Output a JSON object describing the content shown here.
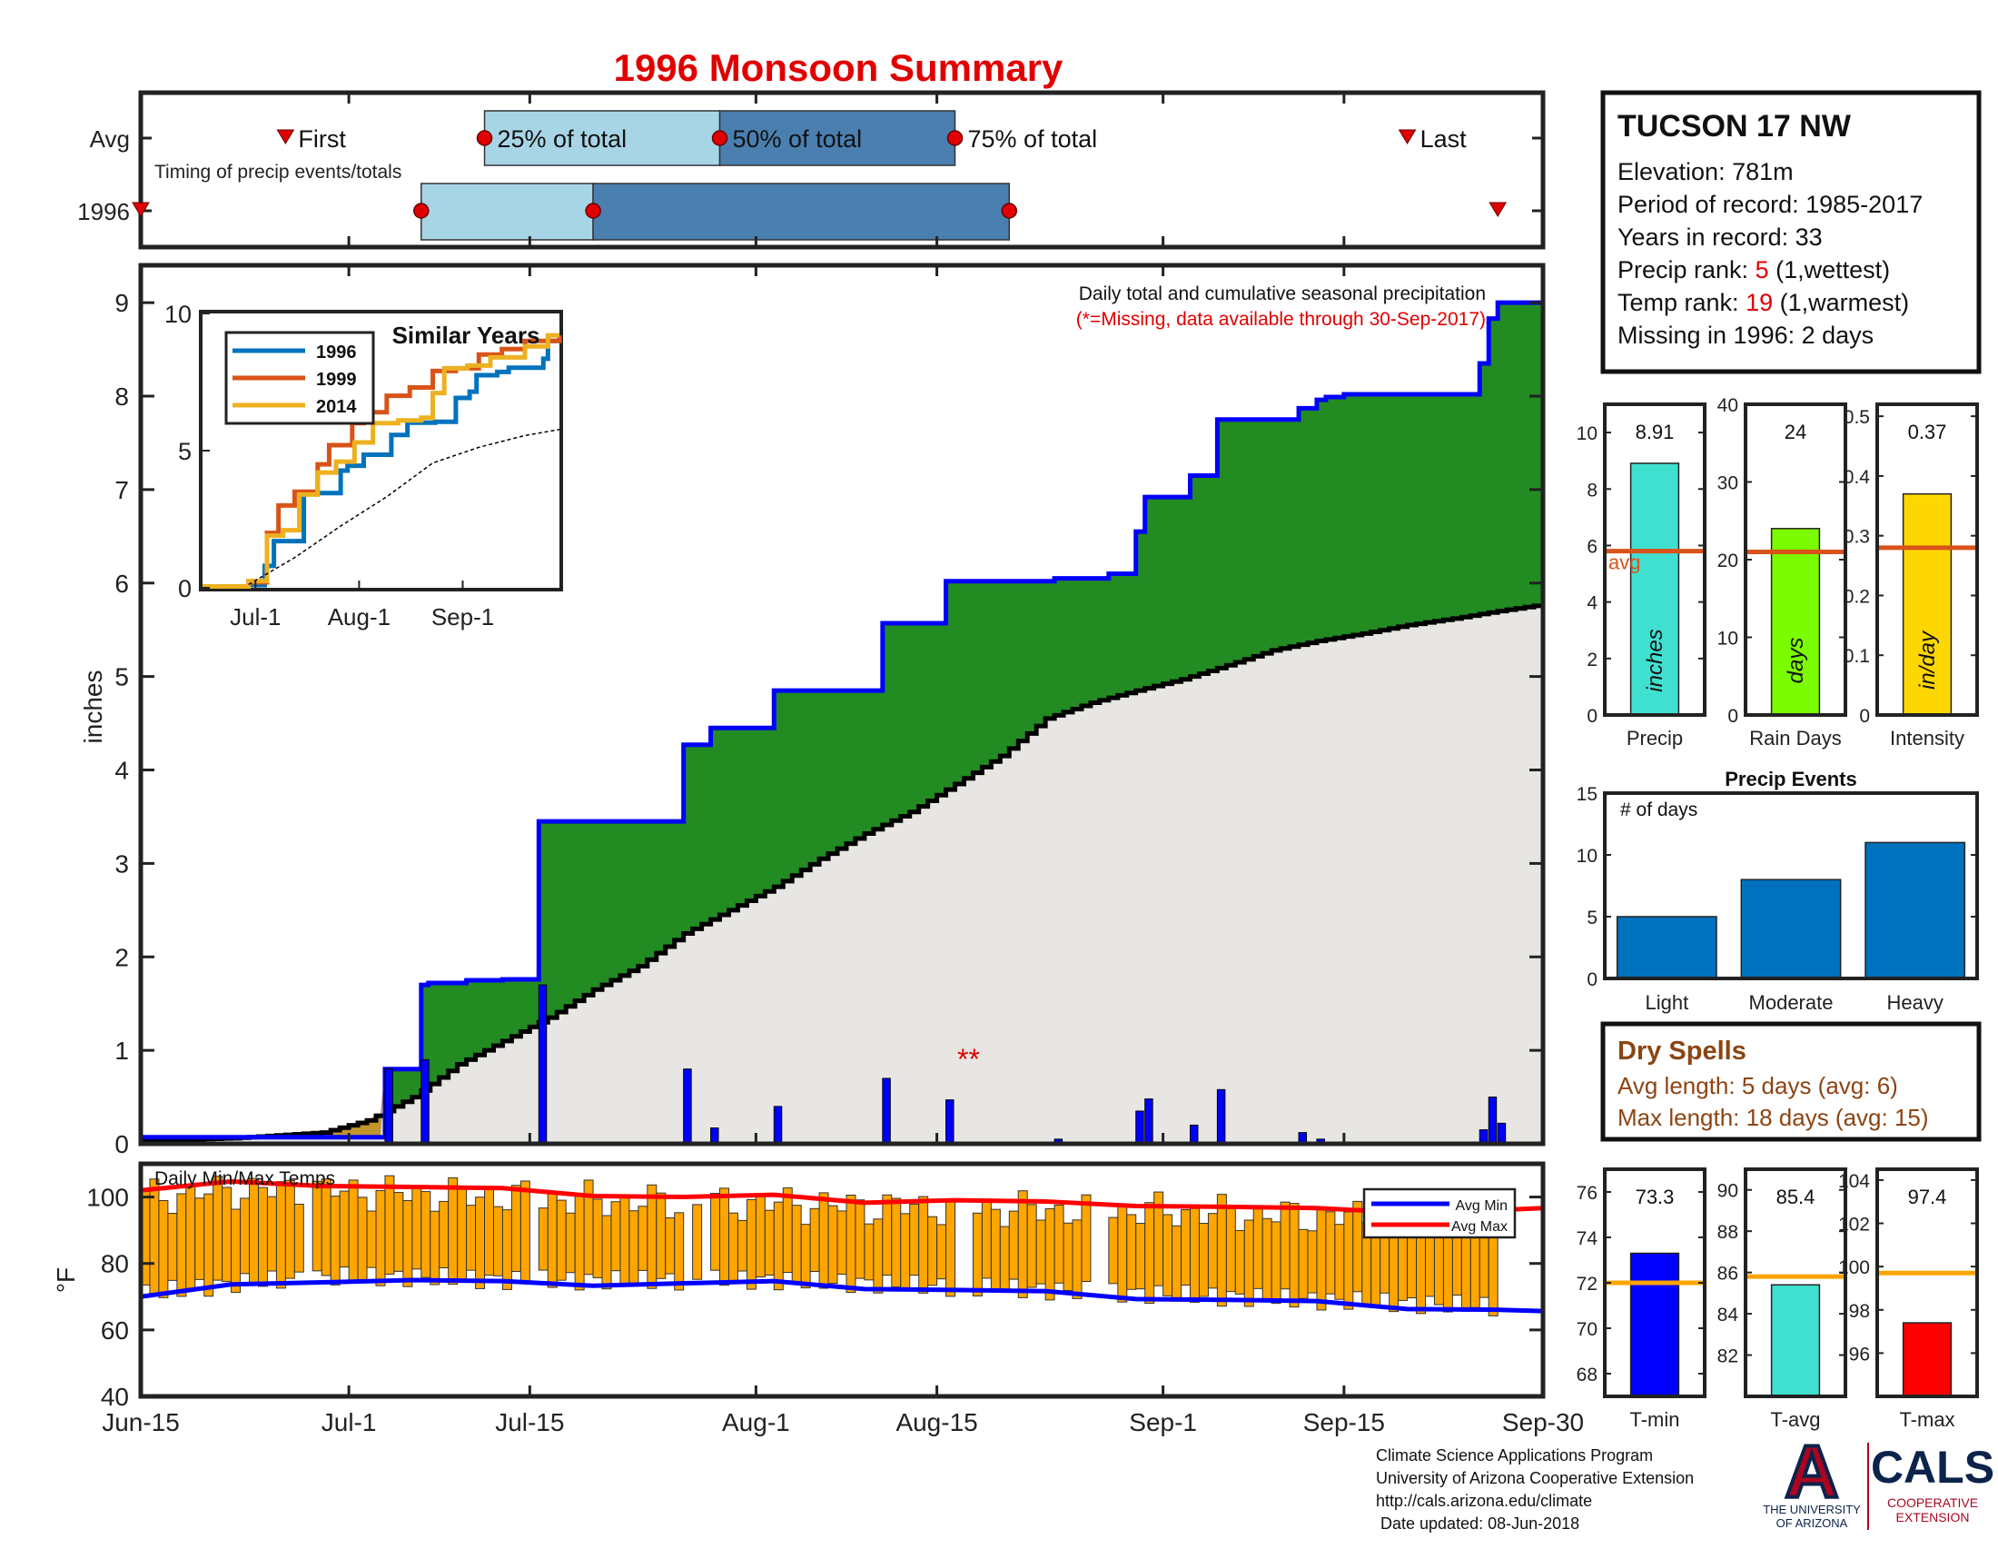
{
  "header": {
    "title": "1996 Monsoon Summary"
  },
  "station": {
    "name": "TUCSON 17 NW",
    "elevation": "Elevation: 781m",
    "period": "Period of record: 1985-2017",
    "years": "Years in record: 33",
    "precip_rank_label": "Precip rank: ",
    "precip_rank_value": "5",
    "precip_rank_suffix": " (1,wettest)",
    "temp_rank_label": "Temp rank: ",
    "temp_rank_value": "19",
    "temp_rank_suffix": " (1,warmest)",
    "missing": "Missing in 1996: 2 days"
  },
  "timing": {
    "row_labels": [
      "Avg",
      "1996"
    ],
    "caption": "Timing of precip events/totals",
    "first_label": "First",
    "last_label": "Last",
    "q25_label": "25% of total",
    "q50_label": "50% of total",
    "q75_label": "75% of total",
    "avg_day": {
      "first": 16,
      "q25": 38,
      "q50": 64,
      "q75": 90,
      "last": 140
    },
    "y1996_day": {
      "first": 0,
      "q25": 31,
      "q50": 50,
      "q75": 96,
      "last": 150
    }
  },
  "main_chart": {
    "ylabel": "inches",
    "note": "Daily total and cumulative seasonal precipitation",
    "missing_note": "(*=Missing, data available through 30-Sep-2017)",
    "missing_marker": "**",
    "missing_day": 91.5,
    "ylim": [
      0,
      9.4
    ],
    "yticks": [
      0,
      1,
      2,
      3,
      4,
      5,
      6,
      7,
      8,
      9
    ],
    "x_ticks": [
      {
        "label": "Jun-15",
        "day": 0
      },
      {
        "label": "Jul-1",
        "day": 23
      },
      {
        "label": "Jul-15",
        "day": 43
      },
      {
        "label": "Aug-1",
        "day": 68
      },
      {
        "label": "Aug-15",
        "day": 88
      },
      {
        "label": "Sep-1",
        "day": 113
      },
      {
        "label": "Sep-15",
        "day": 133
      },
      {
        "label": "Sep-30",
        "day": 155
      }
    ],
    "colors": {
      "cumulative_1996": "#0000ff",
      "green_fill": "#228b22",
      "avg_fill": "#e8e6e3",
      "daily_bars": "#0000ff",
      "avg_line": "#000000"
    }
  },
  "chart_data": [
    {
      "type": "area",
      "title": "Daily total and cumulative seasonal precipitation",
      "ylabel": "inches",
      "x_unit": "days since Jun-15",
      "series": [
        {
          "name": "1996 cumulative",
          "steps": [
            [
              0,
              0.07
            ],
            [
              27,
              0.8
            ],
            [
              31,
              1.7
            ],
            [
              31.8,
              1.72
            ],
            [
              36,
              1.75
            ],
            [
              40,
              1.76
            ],
            [
              44,
              3.45
            ],
            [
              60,
              4.27
            ],
            [
              63,
              4.45
            ],
            [
              70,
              4.85
            ],
            [
              82,
              5.57
            ],
            [
              89,
              6.02
            ],
            [
              101,
              6.05
            ],
            [
              107,
              6.1
            ],
            [
              110,
              6.55
            ],
            [
              111,
              6.92
            ],
            [
              116,
              7.15
            ],
            [
              119,
              7.75
            ],
            [
              128,
              7.87
            ],
            [
              130,
              7.96
            ],
            [
              131,
              7.99
            ],
            [
              133,
              8.02
            ],
            [
              148,
              8.35
            ],
            [
              149,
              8.83
            ],
            [
              150,
              9.0
            ]
          ]
        },
        {
          "name": "Average cumulative",
          "x": [
            0,
            10,
            20,
            25,
            30,
            35,
            40,
            45,
            50,
            55,
            60,
            65,
            70,
            75,
            80,
            85,
            90,
            95,
            100,
            105,
            110,
            115,
            120,
            125,
            130,
            135,
            140,
            145,
            150,
            155
          ],
          "y": [
            0.03,
            0.06,
            0.12,
            0.25,
            0.5,
            0.85,
            1.1,
            1.35,
            1.65,
            1.9,
            2.25,
            2.5,
            2.75,
            3.05,
            3.32,
            3.55,
            3.85,
            4.15,
            4.55,
            4.72,
            4.85,
            4.97,
            5.12,
            5.28,
            5.38,
            5.46,
            5.55,
            5.62,
            5.7,
            5.77
          ]
        },
        {
          "name": "Daily total",
          "x": [
            27,
            31,
            44,
            60,
            63,
            70,
            82,
            89,
            101,
            110,
            111,
            116,
            119,
            128,
            130,
            148,
            149,
            150
          ],
          "y": [
            0.8,
            0.9,
            1.7,
            0.8,
            0.17,
            0.4,
            0.7,
            0.47,
            0.05,
            0.35,
            0.48,
            0.2,
            0.58,
            0.12,
            0.05,
            0.15,
            0.5,
            0.22
          ]
        }
      ]
    },
    {
      "type": "line",
      "title": "Similar Years",
      "x_unit": "days since Jun-15",
      "xticks": [
        {
          "label": "Jul-1",
          "day": 23
        },
        {
          "label": "Aug-1",
          "day": 68
        },
        {
          "label": "Sep-1",
          "day": 113
        }
      ],
      "ylim": [
        0,
        10
      ],
      "yticks": [
        0,
        5,
        10
      ],
      "series": [
        {
          "name": "1996",
          "color": "#0072bd",
          "x": [
            0,
            20,
            27,
            31,
            44,
            60,
            63,
            70,
            82,
            89,
            101,
            110,
            116,
            119,
            128,
            133,
            148,
            150,
            155
          ],
          "y": [
            0.05,
            0.1,
            0.8,
            1.7,
            3.45,
            4.27,
            4.45,
            4.85,
            5.57,
            6.02,
            6.05,
            6.92,
            7.15,
            7.75,
            7.87,
            8.02,
            8.35,
            9.0,
            9.0
          ]
        },
        {
          "name": "1999",
          "color": "#d95319",
          "x": [
            0,
            20,
            28,
            33,
            40,
            50,
            55,
            65,
            70,
            80,
            90,
            100,
            110,
            120,
            130,
            140,
            150,
            155
          ],
          "y": [
            0.05,
            0.2,
            2.0,
            3.0,
            3.5,
            4.5,
            5.2,
            6.0,
            6.4,
            7.0,
            7.3,
            7.9,
            8.0,
            8.5,
            8.7,
            9.0,
            9.0,
            9.2
          ]
        },
        {
          "name": "2014",
          "color": "#edb120",
          "x": [
            0,
            20,
            28,
            35,
            42,
            50,
            58,
            66,
            74,
            85,
            95,
            100,
            105,
            115,
            125,
            140,
            150,
            155
          ],
          "y": [
            0.05,
            0.25,
            1.9,
            2.1,
            3.4,
            4.2,
            4.6,
            5.3,
            6.0,
            6.1,
            6.2,
            7.1,
            8.0,
            8.1,
            8.4,
            8.8,
            9.2,
            9.2
          ]
        },
        {
          "name": "Average",
          "color": "#000000",
          "x": [
            20,
            40,
            60,
            80,
            100,
            120,
            140,
            155
          ],
          "y": [
            0.12,
            1.1,
            2.25,
            3.32,
            4.55,
            5.12,
            5.55,
            5.77
          ]
        }
      ]
    },
    {
      "type": "bar",
      "title": "Daily Min/Max Temps",
      "ylabel": "°F",
      "ylim": [
        40,
        110
      ],
      "yticks": [
        40,
        60,
        80,
        100
      ],
      "legend": [
        "Avg Min",
        "Avg Max"
      ],
      "legend_position": "top-right",
      "x_unit": "days since Jun-15",
      "series": [
        {
          "name": "Avg Max",
          "x": [
            0,
            10,
            20,
            30,
            40,
            50,
            60,
            70,
            80,
            90,
            100,
            110,
            120,
            130,
            140,
            150,
            155
          ],
          "y": [
            102,
            104,
            104,
            103,
            102,
            101,
            100,
            100,
            99,
            99,
            98,
            98,
            97,
            96,
            96,
            96,
            96
          ]
        },
        {
          "name": "Avg Min",
          "x": [
            0,
            10,
            20,
            30,
            40,
            50,
            60,
            70,
            80,
            90,
            100,
            110,
            120,
            130,
            140,
            150,
            155
          ],
          "y": [
            70,
            73,
            75,
            75,
            74,
            74,
            74,
            74,
            73,
            72,
            71,
            70,
            69,
            68,
            67,
            66,
            65
          ]
        }
      ]
    },
    {
      "type": "bar",
      "title": "Precip",
      "axis_label": "inches",
      "ylim": [
        0,
        11
      ],
      "yticks": [
        0,
        2,
        4,
        6,
        8,
        10
      ],
      "value": 8.91,
      "avg": 5.8,
      "avg_label": "avg",
      "color": "#40e0d0"
    },
    {
      "type": "bar",
      "title": "Rain Days",
      "axis_label": "days",
      "ylim": [
        0,
        40
      ],
      "yticks": [
        0,
        10,
        20,
        30,
        40
      ],
      "value": 24,
      "avg": 21,
      "color": "#7cfc00"
    },
    {
      "type": "bar",
      "title": "Intensity",
      "axis_label": "in/day",
      "ylim": [
        0,
        0.52
      ],
      "yticks": [
        0,
        0.1,
        0.2,
        0.3,
        0.4,
        0.5
      ],
      "value": 0.37,
      "avg": 0.28,
      "color": "#ffd700"
    },
    {
      "type": "bar",
      "title": "Precip Events",
      "axis_label": "# of days",
      "categories": [
        "Light",
        "Moderate",
        "Heavy"
      ],
      "values": [
        5,
        8,
        11
      ],
      "ylim": [
        0,
        15
      ],
      "yticks": [
        0,
        5,
        10,
        15
      ],
      "color": "#0072bd"
    },
    {
      "type": "bar",
      "title": "T-min",
      "ylim": [
        67,
        77
      ],
      "yticks": [
        68,
        70,
        72,
        74,
        76
      ],
      "value": 73.3,
      "avg": 72,
      "color": "#0000ff"
    },
    {
      "type": "bar",
      "title": "T-avg",
      "ylim": [
        80,
        91
      ],
      "yticks": [
        82,
        84,
        86,
        88,
        90
      ],
      "value": 85.4,
      "avg": 85.8,
      "color": "#40e0d0"
    },
    {
      "type": "bar",
      "title": "T-max",
      "ylim": [
        94,
        104.5
      ],
      "yticks": [
        96,
        98,
        100,
        102,
        104
      ],
      "value": 97.4,
      "avg": 99.7,
      "color": "#ff0000"
    }
  ],
  "dry_spells": {
    "title": "Dry Spells",
    "avg": "Avg length: 5 days (avg: 6)",
    "max": "Max length: 18 days (avg: 15)"
  },
  "footer": {
    "line1": "Climate Science Applications Program",
    "line2": "University of Arizona Cooperative Extension",
    "line3": "http://cals.arizona.edu/climate",
    "line4": " Date updated: 08-Jun-2018",
    "ua_line1": "THE UNIVERSITY",
    "ua_line2": "OF ARIZONA",
    "cals": "CALS",
    "cals_sub1": "COOPERATIVE",
    "cals_sub2": "EXTENSION"
  }
}
